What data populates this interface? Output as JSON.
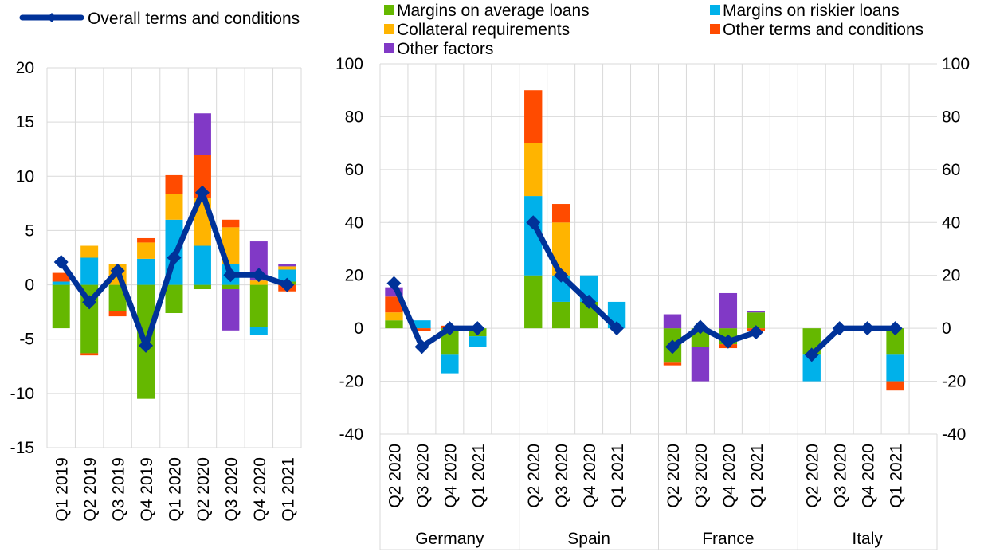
{
  "legend": {
    "line_label": "Overall terms and conditions",
    "items": [
      {
        "label": "Margins on average loans",
        "color": "#65b800"
      },
      {
        "label": "Margins on riskier loans",
        "color": "#00b1ea"
      },
      {
        "label": "Collateral requirements",
        "color": "#ffb400"
      },
      {
        "label": "Other terms and conditions",
        "color": "#ff4b00"
      },
      {
        "label": "Other factors",
        "color": "#8139c6"
      }
    ],
    "line_color": "#003299"
  },
  "chart_data": [
    {
      "type": "bar",
      "stacked": true,
      "categories": [
        "Q1 2019",
        "Q2 2019",
        "Q3 2019",
        "Q4 2019",
        "Q1 2020",
        "Q2 2020",
        "Q3 2020",
        "Q4 2020",
        "Q1 2021"
      ],
      "ylim": [
        -15,
        20
      ],
      "yticks": [
        "20",
        "15",
        "10",
        "5",
        "0",
        "-5",
        "-10",
        "-15"
      ],
      "grid": true,
      "series": [
        {
          "name": "Margins on average loans",
          "values": [
            -4.0,
            -6.3,
            -2.4,
            -10.5,
            -2.6,
            -0.4,
            -0.4,
            -3.9,
            0.3
          ]
        },
        {
          "name": "Margins on riskier loans",
          "values": [
            0.3,
            2.5,
            0.0,
            2.4,
            6.0,
            3.6,
            1.9,
            -0.7,
            1.1
          ]
        },
        {
          "name": "Collateral requirements",
          "values": [
            0.0,
            1.1,
            1.9,
            1.5,
            2.4,
            4.4,
            3.4,
            0.4,
            0.3
          ]
        },
        {
          "name": "Other terms and conditions",
          "values": [
            0.8,
            -0.2,
            -0.5,
            0.4,
            1.7,
            4.0,
            0.7,
            0.0,
            -0.6
          ]
        },
        {
          "name": "Other factors",
          "values": [
            0.0,
            0.0,
            0.0,
            0.0,
            0.0,
            3.8,
            -3.8,
            3.6,
            0.2
          ]
        }
      ],
      "line": {
        "name": "Overall terms and conditions",
        "values": [
          2.1,
          -1.6,
          1.3,
          -5.6,
          2.5,
          8.5,
          0.9,
          0.9,
          0.0
        ]
      }
    },
    {
      "type": "bar",
      "stacked": true,
      "groups": [
        "Germany",
        "Spain",
        "France",
        "Italy"
      ],
      "categories": [
        "Q2 2020",
        "Q3 2020",
        "Q4 2020",
        "Q1 2021"
      ],
      "ylim": [
        -40,
        100
      ],
      "yticks": [
        "100",
        "80",
        "60",
        "40",
        "20",
        "0",
        "-20",
        "-40"
      ],
      "grid": true,
      "series": [
        {
          "name": "Margins on average loans",
          "values": [
            [
              3,
              0,
              -10,
              -3
            ],
            [
              20,
              10,
              10,
              0
            ],
            [
              -13,
              -7,
              -6,
              6
            ],
            [
              -10,
              0,
              0,
              -10
            ]
          ]
        },
        {
          "name": "Margins on riskier loans",
          "values": [
            [
              0,
              3,
              -7,
              -4
            ],
            [
              30,
              10,
              10,
              10
            ],
            [
              0,
              0,
              0,
              0
            ],
            [
              -10,
              0,
              0,
              -10
            ]
          ]
        },
        {
          "name": "Collateral requirements",
          "values": [
            [
              3,
              0,
              0,
              0
            ],
            [
              20,
              20,
              0,
              0
            ],
            [
              0,
              0,
              0,
              0
            ],
            [
              0,
              0,
              0,
              0
            ]
          ]
        },
        {
          "name": "Other terms and conditions",
          "values": [
            [
              6,
              -1,
              1,
              0
            ],
            [
              20,
              7,
              0,
              0
            ],
            [
              -1,
              0,
              -1.5,
              -1
            ],
            [
              0,
              0,
              0,
              -3.5
            ]
          ]
        },
        {
          "name": "Other factors",
          "values": [
            [
              3.5,
              0,
              0,
              0
            ],
            [
              0,
              0,
              0,
              0
            ],
            [
              5.3,
              -13,
              13.3,
              0.5
            ],
            [
              0,
              0,
              0,
              0
            ]
          ]
        }
      ],
      "line": {
        "name": "Overall terms and conditions",
        "values": [
          [
            17,
            -7,
            0,
            0
          ],
          [
            40,
            20,
            10,
            0
          ],
          [
            -7,
            0.5,
            -5,
            -1.5
          ],
          [
            -10,
            0,
            0,
            0
          ]
        ]
      }
    }
  ]
}
